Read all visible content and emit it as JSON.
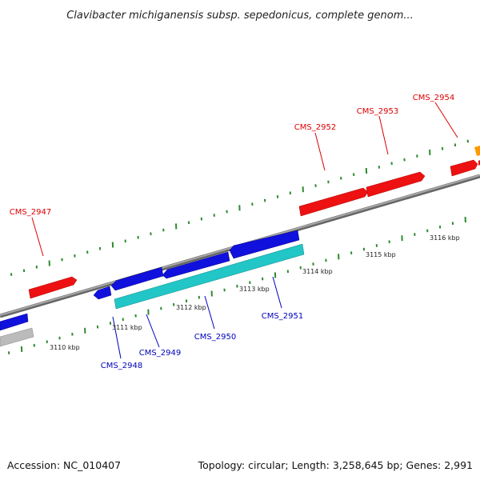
{
  "title": "Clavibacter michiganensis subsp. sepedonicus, complete genom...",
  "accession": "Accession: NC_010407",
  "summary": "Topology: circular; Length: 3,258,645 bp; Genes: 2,991",
  "colors": {
    "backbone": "#888888",
    "tick": "#2e8b2e",
    "forward_label": "#dd0000",
    "reverse_label": "#0000bb",
    "gene_red": "#ee1111",
    "gene_blue": "#1111dd",
    "gene_cyan": "#22c6c6",
    "gene_grey": "#bbbbbb",
    "gene_orange": "#ff9900"
  },
  "forward_labels": [
    "CMS_2947",
    "CMS_2952",
    "CMS_2953",
    "CMS_2954"
  ],
  "reverse_labels": [
    "CMS_2948",
    "CMS_2949",
    "CMS_2950",
    "CMS_2951"
  ],
  "scale_labels": [
    "3110 kbp",
    "3111 kbp",
    "3112 kbp",
    "3113 kbp",
    "3114 kbp",
    "3115 kbp",
    "3116 kbp"
  ]
}
